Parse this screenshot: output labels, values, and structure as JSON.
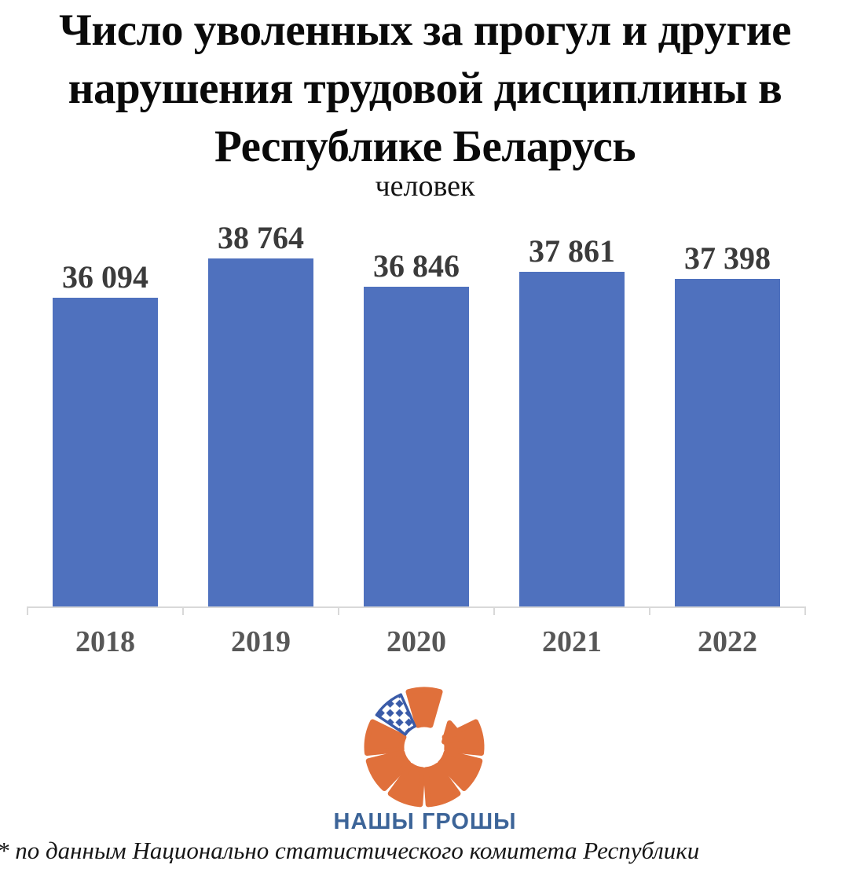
{
  "header": {
    "title_lines": [
      "Число уволенных за прогул и другие",
      "нарушения трудовой дисциплины в",
      "Республике Беларусь"
    ],
    "subtitle": "человек"
  },
  "chart_data": {
    "type": "bar",
    "title": "Число уволенных за прогул и другие нарушения трудовой дисциплины в Республике Беларусь",
    "subtitle_unit": "человек",
    "categories": [
      "2018",
      "2019",
      "2020",
      "2021",
      "2022"
    ],
    "values": [
      36094,
      38764,
      36846,
      37861,
      37398
    ],
    "value_labels": [
      "36 094",
      "38 764",
      "36 846",
      "37 861",
      "37 398"
    ],
    "xlabel": "",
    "ylabel": "человек",
    "ylim": [
      15000,
      40000
    ],
    "grid": false,
    "legend_position": "none",
    "bar_color": "#4F71BE",
    "value_label_color": "#3B3B3B",
    "tick_label_color": "#575757",
    "axis_color": "#D9D9D9"
  },
  "footer": {
    "logo_text": "НАШЫ ГРОШЫ",
    "logo_orange": "#E0703B",
    "logo_blue": "#3A5BA8",
    "logo_text_color": "#3C6498",
    "footnote": "* по данным Национально статистического комитета Республики"
  }
}
